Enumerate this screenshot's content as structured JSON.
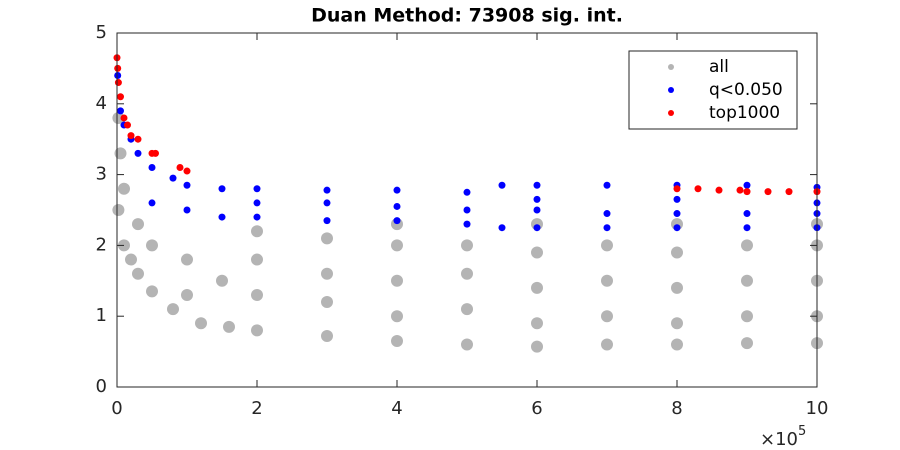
{
  "chart_data": {
    "type": "scatter",
    "title": "Duan Method: 73908 sig. int.",
    "x_multiplier": {
      "base": "×10",
      "exponent": "5"
    },
    "xlim": [
      0,
      10
    ],
    "xticks": [
      0,
      2,
      4,
      6,
      8,
      10
    ],
    "ylim": [
      0,
      5
    ],
    "yticks": [
      0,
      1,
      2,
      3,
      4,
      5
    ],
    "legend": "top-right",
    "series": [
      {
        "name": "all",
        "color": "#b4b4b4",
        "x": [
          0.02,
          0.1,
          0.2,
          0.3,
          0.5,
          0.8,
          1.2,
          1.6,
          2,
          3,
          4,
          5,
          6,
          7,
          8,
          9,
          10,
          0.1,
          0.3,
          0.5,
          1,
          1.5,
          2,
          3,
          4,
          5,
          6,
          7,
          8,
          9,
          10,
          1,
          2,
          3,
          4,
          5,
          6,
          7,
          8,
          9,
          10,
          2,
          3,
          4,
          5,
          6,
          7,
          8,
          9,
          10,
          4,
          6,
          8,
          10,
          0.05,
          0.02
        ],
        "y": [
          2.5,
          2.0,
          1.8,
          1.6,
          1.35,
          1.1,
          0.9,
          0.85,
          0.8,
          0.72,
          0.65,
          0.6,
          0.57,
          0.6,
          0.6,
          0.62,
          0.62,
          2.8,
          2.3,
          2.0,
          1.8,
          1.5,
          1.3,
          1.2,
          1.0,
          1.1,
          0.9,
          1.0,
          0.9,
          1.0,
          1.0,
          1.3,
          1.8,
          1.6,
          1.5,
          1.6,
          1.4,
          1.5,
          1.4,
          1.5,
          1.5,
          2.2,
          2.1,
          2.0,
          2.0,
          1.9,
          2.0,
          1.9,
          2.0,
          2.0,
          2.3,
          2.3,
          2.3,
          2.3,
          3.3,
          3.8
        ]
      },
      {
        "name": "q<0.050",
        "color": "#0000ff",
        "x": [
          0.01,
          0.05,
          0.1,
          0.2,
          0.3,
          0.5,
          0.8,
          1,
          1.5,
          2,
          3,
          4,
          5,
          5.5,
          6,
          7,
          8,
          9,
          10,
          0.5,
          1,
          1.5,
          2,
          3,
          4,
          5,
          5.5,
          6,
          7,
          8,
          9,
          10,
          2,
          3,
          4,
          5,
          6,
          7,
          8,
          9,
          10,
          6,
          8,
          10
        ],
        "y": [
          4.4,
          3.9,
          3.7,
          3.5,
          3.3,
          3.1,
          2.95,
          2.85,
          2.8,
          2.8,
          2.78,
          2.78,
          2.75,
          2.85,
          2.85,
          2.85,
          2.85,
          2.85,
          2.82,
          2.6,
          2.5,
          2.4,
          2.4,
          2.35,
          2.35,
          2.3,
          2.25,
          2.25,
          2.25,
          2.25,
          2.25,
          2.25,
          2.6,
          2.6,
          2.55,
          2.5,
          2.5,
          2.45,
          2.45,
          2.45,
          2.45,
          2.65,
          2.65,
          2.6
        ]
      },
      {
        "name": "top1000",
        "color": "#ff0000",
        "x": [
          0.0,
          0.01,
          0.02,
          0.05,
          0.1,
          0.15,
          0.2,
          0.3,
          0.5,
          0.55,
          0.9,
          1,
          8,
          8.3,
          8.6,
          8.9,
          9.0,
          9.3,
          9.6,
          10
        ],
        "y": [
          4.65,
          4.5,
          4.3,
          4.1,
          3.8,
          3.7,
          3.55,
          3.5,
          3.3,
          3.3,
          3.1,
          3.05,
          2.8,
          2.8,
          2.78,
          2.78,
          2.76,
          2.76,
          2.76,
          2.76
        ]
      }
    ]
  }
}
